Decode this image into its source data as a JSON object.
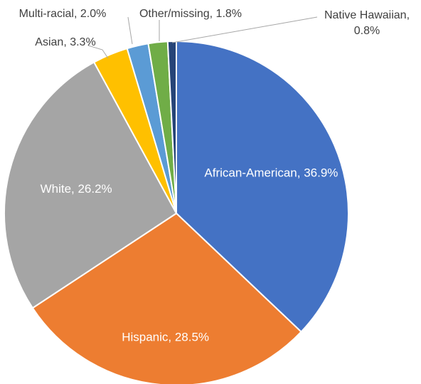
{
  "chart_data": {
    "type": "pie",
    "title": "",
    "legend": "none",
    "slices": [
      {
        "name": "African-American",
        "value": 36.9,
        "value_label": "36.9%",
        "color": "#4472c4"
      },
      {
        "name": "Hispanic",
        "value": 28.5,
        "value_label": "28.5%",
        "color": "#ed7d31"
      },
      {
        "name": "White",
        "value": 26.2,
        "value_label": "26.2%",
        "color": "#a5a5a5"
      },
      {
        "name": "Asian",
        "value": 3.3,
        "value_label": "3.3%",
        "color": "#ffc000"
      },
      {
        "name": "Multi-racial",
        "value": 2.0,
        "value_label": "2.0%",
        "color": "#5b9bd5"
      },
      {
        "name": "Other/missing",
        "value": 1.8,
        "value_label": "1.8%",
        "color": "#70ad47"
      },
      {
        "name": "Native Hawaiian",
        "value": 0.8,
        "value_label": "0.8%",
        "color": "#264478"
      }
    ]
  }
}
